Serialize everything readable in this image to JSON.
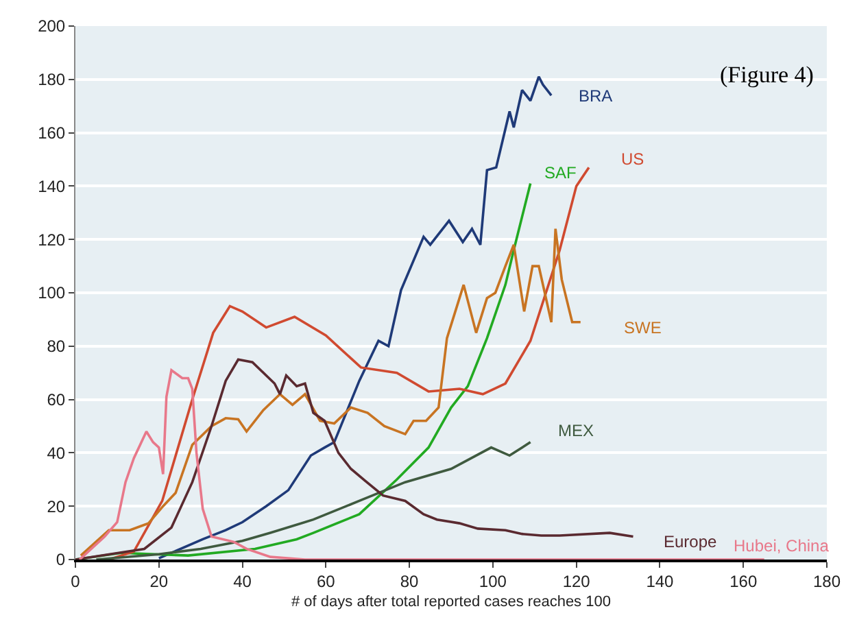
{
  "chart_data": {
    "type": "line",
    "xlabel": "# of days after total reported cases reaches 100",
    "annotations": [
      "(Figure 4)"
    ],
    "xlim": [
      0,
      180
    ],
    "xticks": [
      0,
      20,
      40,
      60,
      80,
      100,
      120,
      140,
      160,
      180
    ],
    "ylim": [
      0,
      200
    ],
    "yticks": [
      0,
      20,
      40,
      60,
      80,
      100,
      120,
      140,
      160,
      180,
      200
    ],
    "grid": "y",
    "legend": false,
    "marker": "none",
    "line_style": "solid",
    "series": [
      {
        "name": "BRA",
        "color": "#1f3a78",
        "x": [
          20,
          30.5,
          36,
          40,
          45.7,
          51,
          56.4,
          59.7,
          62,
          68,
          72.6,
          75,
          78,
          83.4,
          85,
          89.5,
          92.8,
          95,
          97,
          98.6,
          100.8,
          104,
          105,
          107,
          109,
          111,
          112,
          114
        ],
        "values": [
          0.5,
          7.6,
          11,
          14,
          20,
          26,
          39,
          42,
          44,
          67,
          82,
          80,
          101,
          121,
          118,
          127,
          119,
          124,
          118,
          146,
          147,
          168,
          162,
          176,
          172,
          181,
          178,
          174
        ]
      },
      {
        "name": "SAF",
        "color": "#22aa22",
        "x": [
          0,
          11,
          27,
          43,
          53,
          57,
          68,
          77,
          84.6,
          90,
          94,
          98.6,
          103,
          105,
          109
        ],
        "values": [
          0,
          2.5,
          1.5,
          4,
          7.6,
          10,
          17,
          30,
          42,
          57,
          65,
          83,
          103,
          116,
          141
        ]
      },
      {
        "name": "US",
        "color": "#d04a30",
        "x": [
          8,
          14,
          20.8,
          28,
          33,
          37,
          40,
          45.7,
          52.5,
          60,
          68.4,
          77,
          84.6,
          92,
          97.6,
          103,
          109,
          116,
          120,
          123
        ],
        "values": [
          0,
          3,
          22,
          60,
          85,
          95,
          93,
          87,
          91,
          84,
          72,
          70,
          63,
          64,
          62,
          66,
          82,
          116,
          140,
          147
        ]
      },
      {
        "name": "SWE",
        "color": "#c87422",
        "x": [
          1.3,
          8,
          13,
          17.5,
          21,
          24,
          28,
          32.6,
          36,
          39,
          41,
          45,
          49,
          52,
          55,
          58.6,
          62,
          66,
          70,
          74,
          79,
          81,
          84,
          87,
          89,
          93,
          96,
          98.6,
          100.6,
          103,
          105,
          107.5,
          109.5,
          111,
          114,
          115,
          116.5,
          119,
          121
        ],
        "values": [
          1.5,
          11,
          11,
          13.6,
          20,
          25,
          43,
          50,
          53,
          52.6,
          48,
          56,
          62,
          58,
          62,
          52,
          51,
          57,
          55,
          50,
          47,
          52,
          52,
          57,
          83,
          103,
          85,
          98,
          100,
          110,
          118,
          93,
          110,
          110,
          89,
          124,
          105,
          89,
          89
        ]
      },
      {
        "name": "MEX",
        "color": "#3f5a3f",
        "x": [
          5,
          20,
          30,
          40,
          46.7,
          57,
          68,
          79,
          90,
          99.6,
          104,
          109
        ],
        "values": [
          0,
          2,
          4,
          7,
          10,
          15,
          22,
          29,
          34,
          42,
          39,
          44
        ]
      },
      {
        "name": "Europe",
        "color": "#5a2a30",
        "x": [
          0,
          16.5,
          23,
          28,
          32.6,
          36,
          39,
          42.4,
          47.7,
          49,
          50.5,
          53,
          55,
          57,
          59.7,
          63,
          66,
          69.4,
          73.7,
          79,
          83.4,
          86.6,
          92,
          96.4,
          103,
          107,
          111.6,
          116,
          128,
          133.6
        ],
        "values": [
          0,
          4,
          12,
          29,
          50,
          67,
          75,
          74,
          66,
          62,
          69,
          65,
          66,
          55,
          52,
          40,
          34,
          29.5,
          24,
          22,
          17,
          15,
          13.6,
          11.6,
          11,
          9.6,
          9,
          9,
          10,
          8.6
        ]
      },
      {
        "name": "Hubei, China",
        "color": "#e8788a",
        "x": [
          1,
          7,
          10,
          12,
          14,
          17,
          18.6,
          20,
          21,
          21.8,
          23,
          25.6,
          27,
          28,
          29,
          30.5,
          32.6,
          38,
          41,
          46.7,
          55,
          165
        ],
        "values": [
          0,
          8.6,
          14,
          29,
          38,
          48,
          44,
          42,
          32,
          61,
          71,
          68,
          68,
          64,
          40,
          19,
          8.6,
          6.6,
          4,
          1,
          0,
          0
        ]
      }
    ]
  }
}
